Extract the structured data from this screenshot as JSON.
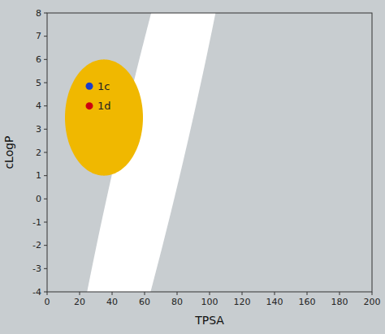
{
  "chart_data": {
    "type": "scatter",
    "xlabel": "TPSA",
    "ylabel": "cLogP",
    "xlim": [
      0,
      200
    ],
    "ylim": [
      -4,
      8
    ],
    "xticks": [
      0,
      20,
      40,
      60,
      80,
      100,
      120,
      140,
      160,
      180,
      200
    ],
    "yticks": [
      -4,
      -3,
      -2,
      -1,
      0,
      1,
      2,
      3,
      4,
      5,
      6,
      7,
      8
    ],
    "grid": false,
    "background_color": "#c8cdd0",
    "regions": [
      {
        "center_x": 65,
        "center_y": 2.3,
        "width": 125,
        "height": 11.5,
        "angle": 15,
        "color": "white"
      },
      {
        "center_x": 35,
        "center_y": 3.5,
        "width": 48,
        "height": 5.0,
        "angle": 0,
        "color": "#f0b800"
      }
    ],
    "series": [
      {
        "name": "1c",
        "color": "#1a3dcc",
        "x": [
          26
        ],
        "values": [
          4.85
        ]
      },
      {
        "name": "1d",
        "color": "#cc0011",
        "x": [
          26
        ],
        "values": [
          4.0
        ]
      }
    ]
  }
}
